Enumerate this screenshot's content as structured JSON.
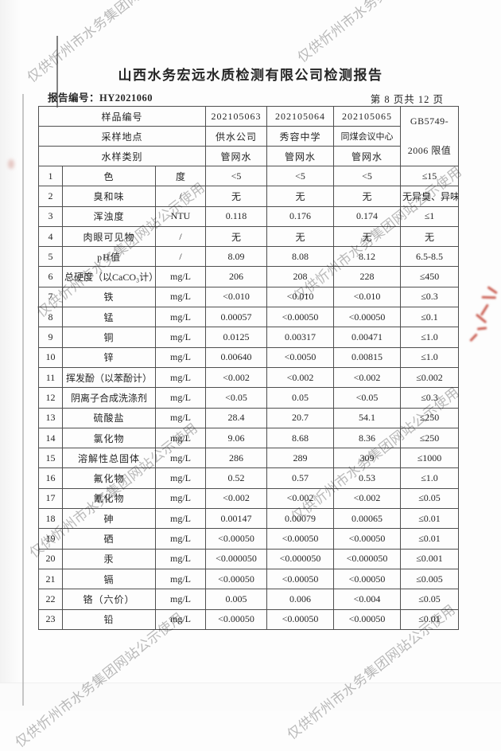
{
  "page": {
    "title": "山西水务宏远水质检测有限公司检测报告",
    "report_number": "报告编号：HY2021060",
    "page_indicator": "第 8 页共 12 页"
  },
  "watermark": {
    "text": "仅供忻州市水务集团网站公示使用",
    "color": "#b4b4b4"
  },
  "stamp": {
    "color": "#c0392b"
  },
  "table": {
    "header": {
      "rows": [
        {
          "label": "样品编号",
          "values": [
            "202105063",
            "202105064",
            "202105065"
          ]
        },
        {
          "label": "采样地点",
          "values": [
            "供水公司",
            "秀容中学",
            "同煤会议中心"
          ]
        },
        {
          "label": "水样类别",
          "values": [
            "管网水",
            "管网水",
            "管网水"
          ]
        }
      ],
      "limit_label_line1": "GB5749-",
      "limit_label_line2": "2006 限值"
    },
    "rows": [
      {
        "no": "1",
        "param": "色",
        "unit": "度",
        "v1": "<5",
        "v2": "<5",
        "v3": "<5",
        "limit": "≤15"
      },
      {
        "no": "2",
        "param": "臭和味",
        "unit": "/",
        "v1": "无",
        "v2": "无",
        "v3": "无",
        "limit": "无异臭、异味"
      },
      {
        "no": "3",
        "param": "浑浊度",
        "unit": "NTU",
        "v1": "0.118",
        "v2": "0.176",
        "v3": "0.174",
        "limit": "≤1"
      },
      {
        "no": "4",
        "param": "肉眼可见物",
        "unit": "/",
        "v1": "无",
        "v2": "无",
        "v3": "无",
        "limit": "无"
      },
      {
        "no": "5",
        "param": "pH值",
        "unit": "/",
        "v1": "8.09",
        "v2": "8.08",
        "v3": "8.12",
        "limit": "6.5-8.5"
      },
      {
        "no": "6",
        "param": "总硬度（以CaCO₃计）",
        "unit": "mg/L",
        "v1": "206",
        "v2": "208",
        "v3": "228",
        "limit": "≤450"
      },
      {
        "no": "7",
        "param": "铁",
        "unit": "mg/L",
        "v1": "<0.010",
        "v2": "<0.010",
        "v3": "<0.010",
        "limit": "≤0.3"
      },
      {
        "no": "8",
        "param": "锰",
        "unit": "mg/L",
        "v1": "0.00057",
        "v2": "<0.00050",
        "v3": "<0.00050",
        "limit": "≤0.1"
      },
      {
        "no": "9",
        "param": "铜",
        "unit": "mg/L",
        "v1": "0.0125",
        "v2": "0.00317",
        "v3": "0.00471",
        "limit": "≤1.0"
      },
      {
        "no": "10",
        "param": "锌",
        "unit": "mg/L",
        "v1": "0.00640",
        "v2": "<0.0050",
        "v3": "0.00815",
        "limit": "≤1.0"
      },
      {
        "no": "11",
        "param": "挥发酚（以苯酚计）",
        "unit": "mg/L",
        "v1": "<0.002",
        "v2": "<0.002",
        "v3": "<0.002",
        "limit": "≤0.002"
      },
      {
        "no": "12",
        "param": "阴离子合成洗涤剂",
        "unit": "mg/L",
        "v1": "<0.05",
        "v2": "0.05",
        "v3": "<0.05",
        "limit": "≤0.3"
      },
      {
        "no": "13",
        "param": "硫酸盐",
        "unit": "mg/L",
        "v1": "28.4",
        "v2": "20.7",
        "v3": "54.1",
        "limit": "≤250"
      },
      {
        "no": "14",
        "param": "氯化物",
        "unit": "mg/L",
        "v1": "9.06",
        "v2": "8.68",
        "v3": "8.36",
        "limit": "≤250"
      },
      {
        "no": "15",
        "param": "溶解性总固体",
        "unit": "mg/L",
        "v1": "286",
        "v2": "289",
        "v3": "309",
        "limit": "≤1000"
      },
      {
        "no": "16",
        "param": "氟化物",
        "unit": "mg/L",
        "v1": "0.52",
        "v2": "0.57",
        "v3": "0.53",
        "limit": "≤1.0"
      },
      {
        "no": "17",
        "param": "氰化物",
        "unit": "mg/L",
        "v1": "<0.002",
        "v2": "<0.002",
        "v3": "<0.002",
        "limit": "≤0.05"
      },
      {
        "no": "18",
        "param": "砷",
        "unit": "mg/L",
        "v1": "0.00147",
        "v2": "0.00079",
        "v3": "0.00065",
        "limit": "≤0.01"
      },
      {
        "no": "19",
        "param": "硒",
        "unit": "mg/L",
        "v1": "<0.00050",
        "v2": "<0.00050",
        "v3": "<0.00050",
        "limit": "≤0.01"
      },
      {
        "no": "20",
        "param": "汞",
        "unit": "mg/L",
        "v1": "<0.000050",
        "v2": "<0.000050",
        "v3": "<0.000050",
        "limit": "≤0.001"
      },
      {
        "no": "21",
        "param": "镉",
        "unit": "mg/L",
        "v1": "<0.00050",
        "v2": "<0.00050",
        "v3": "<0.00050",
        "limit": "≤0.005"
      },
      {
        "no": "22",
        "param": "铬（六价）",
        "unit": "mg/L",
        "v1": "0.005",
        "v2": "0.006",
        "v3": "<0.004",
        "limit": "≤0.05"
      },
      {
        "no": "23",
        "param": "铅",
        "unit": "mg/L",
        "v1": "<0.00050",
        "v2": "<0.00050",
        "v3": "<0.00050",
        "limit": "≤0.01"
      }
    ]
  }
}
